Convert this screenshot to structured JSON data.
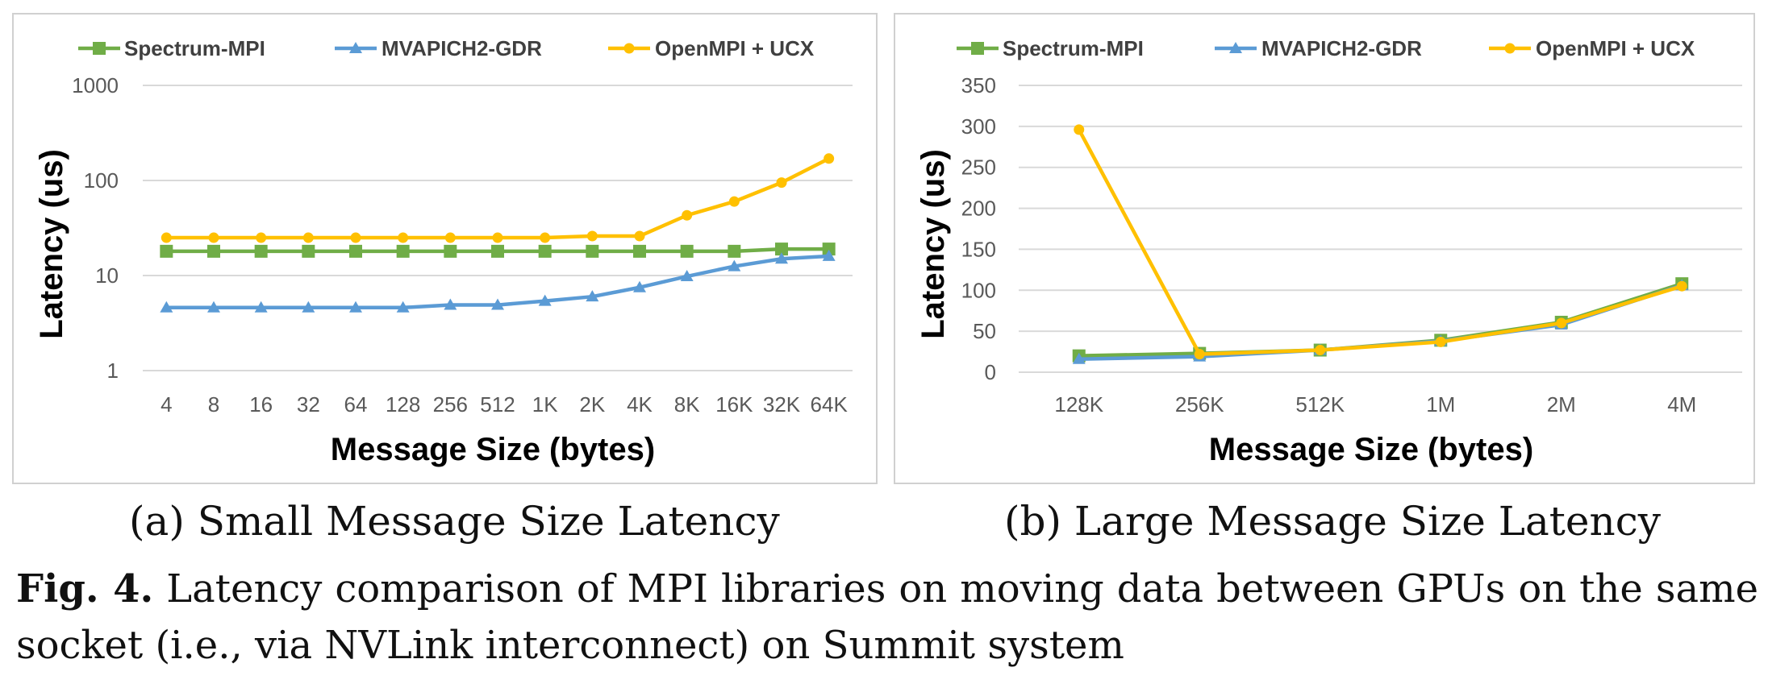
{
  "chart_data": [
    {
      "type": "line",
      "title": "",
      "xlabel": "Message Size (bytes)",
      "ylabel": "Latency (us)",
      "yscale": "log",
      "ylim": [
        1,
        1000
      ],
      "yticks": [
        "1",
        "10",
        "100",
        "1000"
      ],
      "categories": [
        "4",
        "8",
        "16",
        "32",
        "64",
        "128",
        "256",
        "512",
        "1K",
        "2K",
        "4K",
        "8K",
        "16K",
        "32K",
        "64K"
      ],
      "grid": true,
      "legend": "top",
      "series": [
        {
          "name": "Spectrum-MPI",
          "color": "#70ad47",
          "marker": "square",
          "values": [
            18,
            18,
            18,
            18,
            18,
            18,
            18,
            18,
            18,
            18,
            18,
            18,
            18,
            19,
            19
          ]
        },
        {
          "name": "MVAPICH2-GDR",
          "color": "#5b9bd5",
          "marker": "triangle",
          "values": [
            4.6,
            4.6,
            4.6,
            4.6,
            4.6,
            4.6,
            4.9,
            4.9,
            5.4,
            6,
            7.5,
            9.8,
            12.5,
            15,
            16
          ]
        },
        {
          "name": "OpenMPI + UCX",
          "color": "#ffc000",
          "marker": "circle",
          "values": [
            25,
            25,
            25,
            25,
            25,
            25,
            25,
            25,
            25,
            26,
            26,
            43,
            60,
            95,
            170
          ]
        }
      ]
    },
    {
      "type": "line",
      "title": "",
      "xlabel": "Message Size (bytes)",
      "ylabel": "Latency (us)",
      "yscale": "linear",
      "ylim": [
        0,
        350
      ],
      "yticks": [
        "0",
        "50",
        "100",
        "150",
        "200",
        "250",
        "300",
        "350"
      ],
      "categories": [
        "128K",
        "256K",
        "512K",
        "1M",
        "2M",
        "4M"
      ],
      "grid": true,
      "legend": "top",
      "series": [
        {
          "name": "Spectrum-MPI",
          "color": "#70ad47",
          "marker": "square",
          "values": [
            20,
            23,
            27,
            39,
            61,
            108
          ]
        },
        {
          "name": "MVAPICH2-GDR",
          "color": "#5b9bd5",
          "marker": "triangle",
          "values": [
            16,
            19,
            27,
            38,
            58,
            106
          ]
        },
        {
          "name": "OpenMPI + UCX",
          "color": "#ffc000",
          "marker": "circle",
          "values": [
            296,
            22,
            27,
            37,
            60,
            105
          ]
        }
      ]
    }
  ],
  "captions": {
    "sub_a": "(a) Small Message Size Latency",
    "sub_b": "(b) Large Message Size Latency",
    "fig_label": "Fig. 4.",
    "fig_text": " Latency comparison of MPI libraries on moving data between GPUs on the same socket (i.e., via NVLink interconnect) on Summit system"
  }
}
